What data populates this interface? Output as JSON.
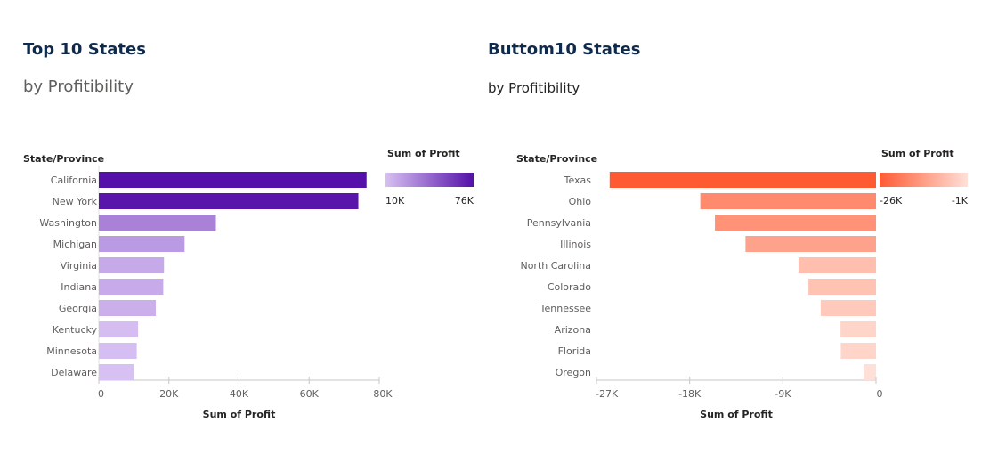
{
  "chart_data": [
    {
      "type": "bar",
      "orientation": "horizontal",
      "title": "Top 10 States",
      "subtitle": "by Profitibility",
      "ylabel": "State/Province",
      "xlabel": "Sum of Profit",
      "categories": [
        "California",
        "New York",
        "Washington",
        "Michigan",
        "Virginia",
        "Indiana",
        "Georgia",
        "Kentucky",
        "Minnesota",
        "Delaware"
      ],
      "values": [
        76381,
        74039,
        33403,
        24463,
        18598,
        18383,
        16250,
        11199,
        10823,
        9977
      ],
      "xlim": [
        0,
        80000
      ],
      "xticks": [
        0,
        20000,
        40000,
        60000,
        80000
      ],
      "xtick_labels": [
        "0",
        "20K",
        "40K",
        "60K",
        "80K"
      ],
      "grid": false,
      "legend": {
        "title": "Sum of Profit",
        "type": "gradient",
        "min_label": "10K",
        "max_label": "76K",
        "min_value": 9977,
        "max_value": 76381,
        "min_color": "#d7c0f2",
        "max_color": "#5410a8",
        "placement": "top-right"
      }
    },
    {
      "type": "bar",
      "orientation": "horizontal",
      "title": "Buttom10 States",
      "subtitle": "by Profitibility",
      "ylabel": "State/Province",
      "xlabel": "Sum of Profit",
      "categories": [
        "Texas",
        "Ohio",
        "Pennsylvania",
        "Illinois",
        "North Carolina",
        "Colorado",
        "Tennessee",
        "Arizona",
        "Florida",
        "Oregon"
      ],
      "values": [
        -25729,
        -16971,
        -15560,
        -12608,
        -7491,
        -6528,
        -5342,
        -3428,
        -3399,
        -1191
      ],
      "xlim": [
        -27000,
        0
      ],
      "xticks": [
        -27000,
        -18000,
        -9000,
        0
      ],
      "xtick_labels": [
        "-27K",
        "-18K",
        "-9K",
        "0"
      ],
      "grid": false,
      "legend": {
        "title": "Sum of Profit",
        "type": "gradient",
        "min_label": "-26K",
        "max_label": "-1K",
        "min_value": -25729,
        "max_value": -1191,
        "min_color": "#ff5b33",
        "max_color": "#ffe0d8",
        "placement": "top-right"
      }
    }
  ]
}
